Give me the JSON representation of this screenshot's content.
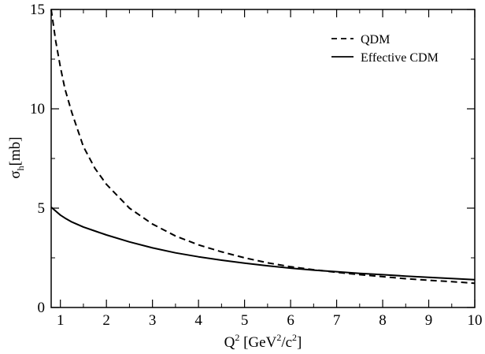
{
  "chart_data": {
    "type": "line",
    "title": "",
    "xlabel_main": "Q",
    "xlabel_sup": "2",
    "xlabel_rest": " [GeV",
    "xlabel_sup2": "2",
    "xlabel_rest2": "/c",
    "xlabel_sup3": "2",
    "xlabel_end": "]",
    "ylabel_sigma": "σ",
    "ylabel_sub": "h",
    "ylabel_rest": "[mb]",
    "xlim": [
      0.8,
      10
    ],
    "ylim": [
      0,
      15
    ],
    "xticks": [
      "1",
      "2",
      "3",
      "4",
      "5",
      "6",
      "7",
      "8",
      "9",
      "10"
    ],
    "yticks": [
      "0",
      "5",
      "10",
      "15"
    ],
    "legend_position": "top-right",
    "grid": false,
    "series": [
      {
        "name": "QDM",
        "style": "dashed",
        "x": [
          0.8,
          0.9,
          1.0,
          1.1,
          1.25,
          1.5,
          1.75,
          2.0,
          2.5,
          3.0,
          3.5,
          4.0,
          4.5,
          5.0,
          5.5,
          6.0,
          6.5,
          7.0,
          7.5,
          8.0,
          8.5,
          9.0,
          9.5,
          10.0
        ],
        "y": [
          15.0,
          13.4,
          12.1,
          11.0,
          9.8,
          8.1,
          7.0,
          6.2,
          5.0,
          4.2,
          3.6,
          3.15,
          2.8,
          2.5,
          2.25,
          2.05,
          1.9,
          1.77,
          1.65,
          1.55,
          1.45,
          1.37,
          1.3,
          1.22
        ]
      },
      {
        "name": "Effective CDM",
        "style": "solid",
        "x": [
          0.8,
          0.9,
          1.0,
          1.1,
          1.25,
          1.5,
          1.75,
          2.0,
          2.5,
          3.0,
          3.5,
          4.0,
          4.5,
          5.0,
          5.5,
          6.0,
          6.5,
          7.0,
          7.5,
          8.0,
          8.5,
          9.0,
          9.5,
          10.0
        ],
        "y": [
          5.05,
          4.85,
          4.65,
          4.5,
          4.3,
          4.05,
          3.85,
          3.65,
          3.3,
          3.0,
          2.75,
          2.55,
          2.38,
          2.23,
          2.1,
          1.98,
          1.88,
          1.8,
          1.72,
          1.65,
          1.58,
          1.52,
          1.46,
          1.4
        ]
      }
    ]
  }
}
